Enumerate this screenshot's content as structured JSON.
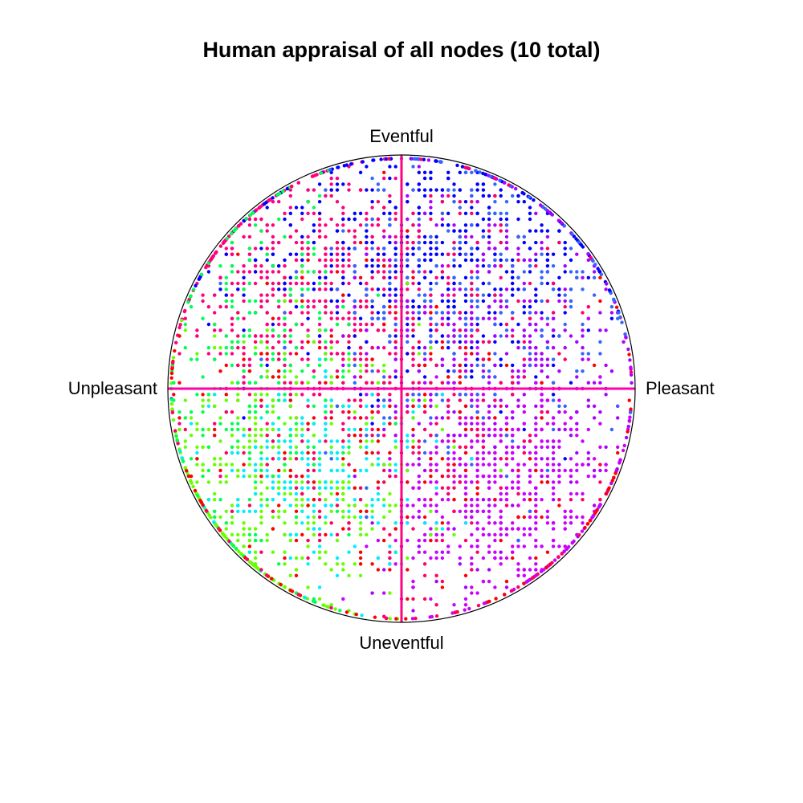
{
  "chart_data": {
    "type": "scatter",
    "title": "Human appraisal of all nodes (10 total)",
    "axis_labels": {
      "top": "Eventful",
      "bottom": "Uneventful",
      "left": "Unpleasant",
      "right": "Pleasant"
    },
    "x_axis": {
      "name": "Pleasant",
      "range": [
        -1,
        1
      ]
    },
    "y_axis": {
      "name": "Eventful",
      "range": [
        -1,
        1
      ]
    },
    "boundary": "unit-circle",
    "grid": false,
    "legend": "none",
    "series": [
      {
        "color": "#ff0080",
        "center": [
          -0.4,
          0.45
        ],
        "spread": [
          0.3,
          0.3
        ],
        "rot": -0.75,
        "count": 650
      },
      {
        "color": "#0000ff",
        "center": [
          0.15,
          0.55
        ],
        "spread": [
          0.4,
          0.28
        ],
        "rot": 0,
        "count": 650
      },
      {
        "color": "#aa00ff",
        "center": [
          0.4,
          0.1
        ],
        "spread": [
          0.3,
          0.4
        ],
        "rot": 0,
        "count": 550
      },
      {
        "color": "#cc00ff",
        "center": [
          0.45,
          -0.45
        ],
        "spread": [
          0.26,
          0.26
        ],
        "rot": 0,
        "count": 600
      },
      {
        "color": "#66ff00",
        "center": [
          -0.55,
          -0.4
        ],
        "spread": [
          0.32,
          0.3
        ],
        "rot": 0,
        "count": 600
      },
      {
        "color": "#00ff55",
        "center": [
          -0.6,
          0.05
        ],
        "spread": [
          0.22,
          0.4
        ],
        "rot": 0,
        "count": 280
      },
      {
        "color": "#00eeff",
        "center": [
          -0.35,
          -0.35
        ],
        "spread": [
          0.25,
          0.2
        ],
        "rot": 0,
        "count": 250
      },
      {
        "color": "#ff0000",
        "center": [
          0.0,
          -0.3
        ],
        "spread": [
          0.55,
          0.45
        ],
        "rot": 0,
        "count": 250
      },
      {
        "color": "#3366ff",
        "center": [
          0.3,
          0.35
        ],
        "spread": [
          0.35,
          0.35
        ],
        "rot": 0,
        "count": 300
      },
      {
        "color": "#ff0066",
        "center": [
          0.0,
          0.0
        ],
        "spread": [
          0.45,
          0.45
        ],
        "rot": 0,
        "count": 350
      }
    ]
  }
}
